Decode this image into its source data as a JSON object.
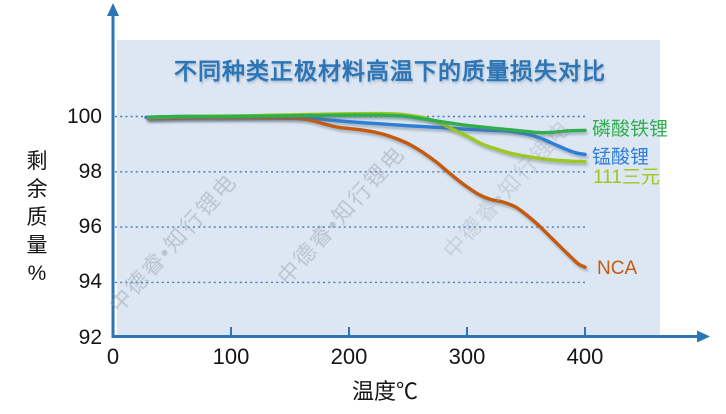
{
  "title": "不同种类正极材料高温下的质量损失对比",
  "watermark": {
    "text": "中德睿•知行锂电"
  },
  "chart_data": {
    "type": "line",
    "title": "不同种类正极材料高温下的质量损失对比",
    "xlabel": "温度℃",
    "ylabel": "剩余质量%",
    "xlim": [
      0,
      500
    ],
    "ylim": [
      92,
      100.6
    ],
    "xticks": [
      0,
      100,
      200,
      300,
      400
    ],
    "yticks": [
      100,
      98,
      96,
      94,
      92
    ],
    "grid_yticks": [
      100,
      98,
      96,
      94
    ],
    "grid": "dotted-horizontal",
    "legend_position": "right-outside",
    "plot_bg": "#DCE7F3",
    "axis_color": "#2E75B6",
    "series": [
      {
        "name": "磷酸铁锂",
        "key": "lfp",
        "color": "#2FAE4D",
        "points": [
          [
            30,
            99.98
          ],
          [
            60,
            100
          ],
          [
            100,
            100
          ],
          [
            140,
            100.02
          ],
          [
            170,
            100.04
          ],
          [
            200,
            100.05
          ],
          [
            225,
            100.05
          ],
          [
            245,
            100.02
          ],
          [
            258,
            99.95
          ],
          [
            270,
            99.87
          ],
          [
            283,
            99.78
          ],
          [
            296,
            99.7
          ],
          [
            310,
            99.63
          ],
          [
            324,
            99.57
          ],
          [
            338,
            99.51
          ],
          [
            350,
            99.46
          ],
          [
            360,
            99.42
          ],
          [
            370,
            99.42
          ],
          [
            380,
            99.46
          ],
          [
            390,
            99.49
          ],
          [
            400,
            99.5
          ]
        ]
      },
      {
        "name": "锰酸锂",
        "key": "lmo",
        "color": "#2E7DD6",
        "points": [
          [
            28,
            99.97
          ],
          [
            60,
            100
          ],
          [
            100,
            100
          ],
          [
            145,
            100
          ],
          [
            165,
            99.97
          ],
          [
            178,
            99.9
          ],
          [
            192,
            99.84
          ],
          [
            207,
            99.79
          ],
          [
            225,
            99.74
          ],
          [
            245,
            99.68
          ],
          [
            265,
            99.63
          ],
          [
            285,
            99.58
          ],
          [
            300,
            99.54
          ],
          [
            315,
            99.51
          ],
          [
            330,
            99.49
          ],
          [
            343,
            99.43
          ],
          [
            355,
            99.32
          ],
          [
            366,
            99.15
          ],
          [
            377,
            98.94
          ],
          [
            387,
            98.76
          ],
          [
            394,
            98.67
          ],
          [
            400,
            98.63
          ]
        ]
      },
      {
        "name": "111三元",
        "key": "ternary111",
        "color": "#9DC820",
        "points": [
          [
            30,
            99.96
          ],
          [
            60,
            100
          ],
          [
            100,
            100.02
          ],
          [
            140,
            100.05
          ],
          [
            175,
            100.08
          ],
          [
            205,
            100.1
          ],
          [
            235,
            100.1
          ],
          [
            252,
            100.04
          ],
          [
            265,
            99.94
          ],
          [
            277,
            99.76
          ],
          [
            289,
            99.52
          ],
          [
            301,
            99.27
          ],
          [
            313,
            99.0
          ],
          [
            325,
            98.82
          ],
          [
            337,
            98.67
          ],
          [
            350,
            98.56
          ],
          [
            364,
            98.47
          ],
          [
            378,
            98.41
          ],
          [
            390,
            98.38
          ],
          [
            400,
            98.37
          ]
        ]
      },
      {
        "name": "NCA",
        "key": "nca",
        "color": "#C55A11",
        "points": [
          [
            30,
            99.92
          ],
          [
            60,
            99.94
          ],
          [
            100,
            99.95
          ],
          [
            140,
            99.94
          ],
          [
            158,
            99.92
          ],
          [
            170,
            99.84
          ],
          [
            180,
            99.72
          ],
          [
            191,
            99.61
          ],
          [
            203,
            99.55
          ],
          [
            216,
            99.48
          ],
          [
            228,
            99.37
          ],
          [
            240,
            99.2
          ],
          [
            251,
            99.0
          ],
          [
            262,
            98.72
          ],
          [
            274,
            98.35
          ],
          [
            286,
            97.92
          ],
          [
            298,
            97.52
          ],
          [
            310,
            97.18
          ],
          [
            320,
            97.0
          ],
          [
            331,
            96.9
          ],
          [
            341,
            96.73
          ],
          [
            351,
            96.42
          ],
          [
            361,
            96.05
          ],
          [
            371,
            95.63
          ],
          [
            380,
            95.25
          ],
          [
            388,
            94.92
          ],
          [
            394,
            94.68
          ],
          [
            400,
            94.55
          ]
        ]
      }
    ]
  }
}
